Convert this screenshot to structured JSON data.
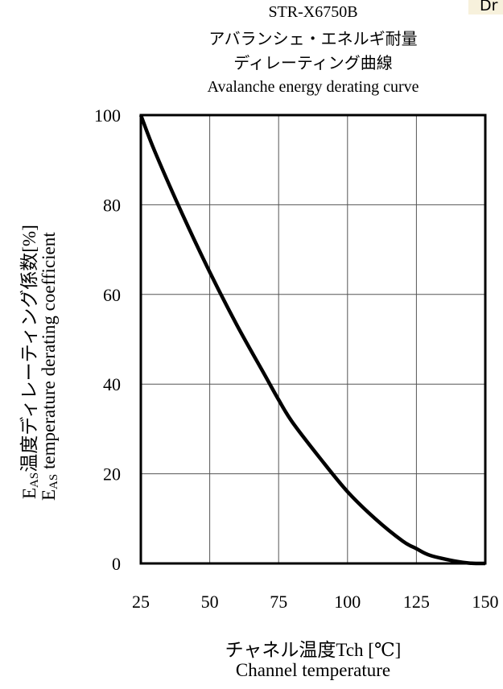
{
  "corner_tag": "Dr",
  "chart_data": {
    "type": "line",
    "title_lines": [
      "STR-X6750B",
      "アバランシェ・エネルギ耐量",
      "ディレーティング曲線",
      "Avalanche energy derating curve"
    ],
    "xlabel_lines": [
      "チャネル温度Tch [℃]",
      "Channel temperature"
    ],
    "ylabel_lines": [
      {
        "main": "E",
        "sub": "AS",
        "rest": "温度ディレーティング係数[%]"
      },
      {
        "main": "E",
        "sub": "AS",
        "rest": " temperature derating coefficient"
      }
    ],
    "xlim": [
      25,
      150
    ],
    "ylim": [
      0,
      100
    ],
    "x_ticks": [
      25,
      50,
      75,
      100,
      125,
      150
    ],
    "y_ticks": [
      0,
      20,
      40,
      60,
      80,
      100
    ],
    "x_tick_labels": [
      "25",
      "50",
      "75",
      "100",
      "125",
      "150"
    ],
    "y_tick_labels": [
      "0",
      "20",
      "40",
      "60",
      "80",
      "100"
    ],
    "grid": true,
    "series": [
      {
        "x": [
          25,
          30,
          40,
          50,
          60,
          70,
          75,
          80,
          90,
          100,
          110,
          120,
          125,
          130,
          140,
          145,
          150
        ],
        "y": [
          100,
          92,
          78,
          65,
          53,
          42,
          36.5,
          31.5,
          23.5,
          16,
          10,
          5,
          3.3,
          1.8,
          0.4,
          0.05,
          0
        ],
        "color": "#000000"
      }
    ]
  }
}
